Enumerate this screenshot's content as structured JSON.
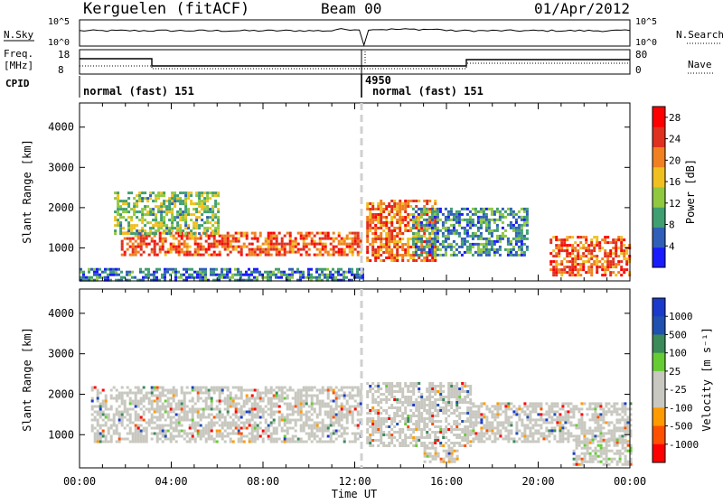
{
  "header": {
    "left": "Kerguelen (fitACF)",
    "center": "Beam 00",
    "right": "01/Apr/2012"
  },
  "noise_panel": {
    "left_label": "N.Sky",
    "right_label": "N.Search",
    "left_ticks": [
      "10^5",
      "10^0"
    ],
    "right_ticks": [
      "10^5",
      "10^0"
    ]
  },
  "freq_panel": {
    "left_label_line1": "Freq.",
    "left_label_line2": "[MHz]",
    "left_ticks": [
      "18",
      "8"
    ],
    "right_label": "Nave",
    "right_ticks": [
      "80",
      "0"
    ]
  },
  "cpid": {
    "label": "CPID",
    "segments": [
      {
        "text": "normal (fast) 151",
        "start_hour": 0,
        "end_hour": 12.3
      },
      {
        "text": "normal (fast) 151",
        "start_hour": 12.5,
        "end_hour": 24
      }
    ],
    "mark": "4950"
  },
  "colors": {
    "power": [
      "#1a1aff",
      "#2f5fb8",
      "#3f9f70",
      "#90c840",
      "#f0c020",
      "#f08020",
      "#e03020",
      "#ff0000"
    ],
    "velocity": [
      "#ff0000",
      "#ff5000",
      "#ff9a00",
      "#c8c8c0",
      "#c8c8c0",
      "#66cc33",
      "#3a8a5a",
      "#2050b0",
      "#1a3acc"
    ]
  },
  "chart_data": [
    {
      "type": "heatmap",
      "title": "Power",
      "xlabel": "Time UT",
      "ylabel": "Slant Range [km]",
      "xlim": [
        0,
        24
      ],
      "ylim": [
        180,
        4600
      ],
      "x_ticks": [
        "00:00",
        "04:00",
        "08:00",
        "12:00",
        "16:00",
        "20:00",
        "00:00"
      ],
      "y_ticks": [
        1000,
        2000,
        3000,
        4000
      ],
      "colorbar": {
        "label": "Power [dB]",
        "ticks": [
          4,
          8,
          12,
          16,
          20,
          24,
          28
        ],
        "range": [
          0,
          30
        ]
      },
      "regions": [
        {
          "t0": 1.8,
          "t1": 12.3,
          "r0": 800,
          "r1": 1400,
          "level": 0.8
        },
        {
          "t0": 1.5,
          "t1": 6.0,
          "r0": 1350,
          "r1": 2400,
          "level": 0.4
        },
        {
          "t0": 12.5,
          "t1": 15.5,
          "r0": 700,
          "r1": 2200,
          "level": 0.75
        },
        {
          "t0": 20.5,
          "t1": 24.0,
          "r0": 300,
          "r1": 1300,
          "level": 0.8
        },
        {
          "t0": 0.0,
          "t1": 12.3,
          "r0": 200,
          "r1": 500,
          "level": 0.2
        },
        {
          "t0": 14.5,
          "t1": 19.5,
          "r0": 800,
          "r1": 2000,
          "level": 0.25
        }
      ]
    },
    {
      "type": "heatmap",
      "title": "Velocity",
      "xlabel": "Time UT",
      "ylabel": "Slant Range [km]",
      "xlim": [
        0,
        24
      ],
      "ylim": [
        180,
        4600
      ],
      "x_ticks": [
        "00:00",
        "04:00",
        "08:00",
        "12:00",
        "16:00",
        "20:00",
        "00:00"
      ],
      "y_ticks": [
        1000,
        2000,
        3000,
        4000
      ],
      "colorbar": {
        "label": "Velocity [m s⁻¹]",
        "ticks": [
          1000,
          500,
          100,
          25,
          -25,
          -100,
          -500,
          -1000
        ]
      },
      "regions": [
        {
          "t0": 0.5,
          "t1": 12.3,
          "r0": 800,
          "r1": 2200,
          "level": 0.5
        },
        {
          "t0": 12.5,
          "t1": 17.0,
          "r0": 700,
          "r1": 2300,
          "level": 0.5
        },
        {
          "t0": 17.0,
          "t1": 24.0,
          "r0": 800,
          "r1": 1800,
          "level": 0.5
        },
        {
          "t0": 21.5,
          "t1": 24.0,
          "r0": 250,
          "r1": 900,
          "level": 0.7
        },
        {
          "t0": 15.0,
          "t1": 16.5,
          "r0": 300,
          "r1": 700,
          "level": 0.25
        }
      ]
    }
  ]
}
